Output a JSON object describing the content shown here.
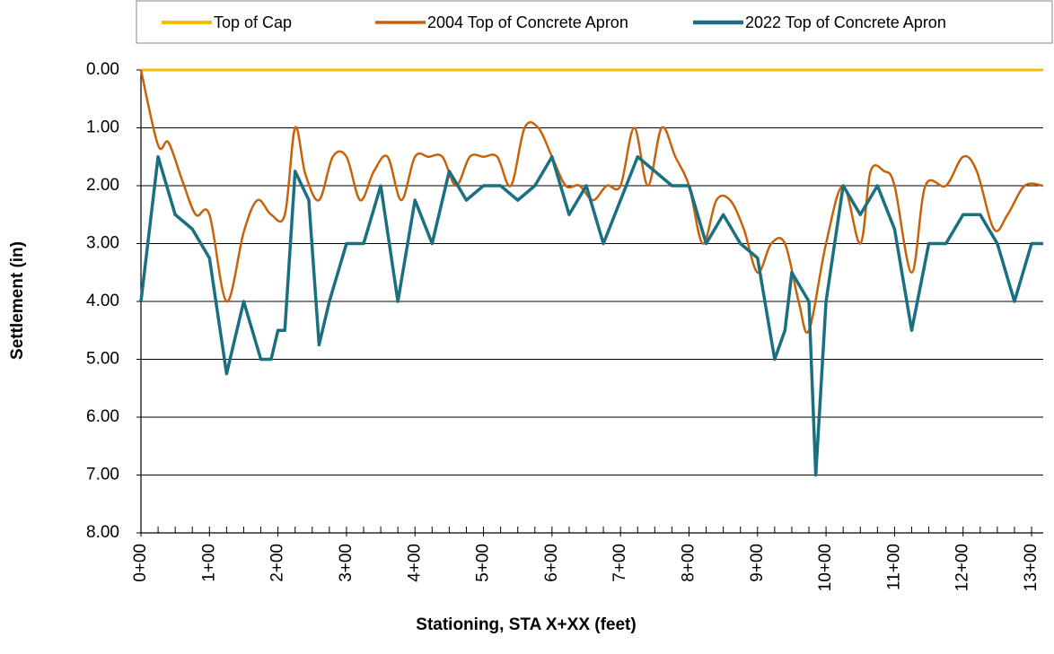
{
  "chart_data": {
    "type": "line",
    "y_label": "Settlement (in)",
    "x_label": "Stationing, STA X+XX (feet)",
    "y_inverted": true,
    "grid": true,
    "legend": "top",
    "xlim": [
      0,
      1317
    ],
    "ylim": [
      0,
      8
    ],
    "yticks": [
      {
        "value": 0,
        "label": "0.00"
      },
      {
        "value": 1,
        "label": "1.00"
      },
      {
        "value": 2,
        "label": "2.00"
      },
      {
        "value": 3,
        "label": "3.00"
      },
      {
        "value": 4,
        "label": "4.00"
      },
      {
        "value": 5,
        "label": "5.00"
      },
      {
        "value": 6,
        "label": "6.00"
      },
      {
        "value": 7,
        "label": "7.00"
      },
      {
        "value": 8,
        "label": "8.00"
      }
    ],
    "xticks": [
      {
        "value": 0,
        "label": "0+00"
      },
      {
        "value": 100,
        "label": "1+00"
      },
      {
        "value": 200,
        "label": "2+00"
      },
      {
        "value": 300,
        "label": "3+00"
      },
      {
        "value": 400,
        "label": "4+00"
      },
      {
        "value": 500,
        "label": "5+00"
      },
      {
        "value": 600,
        "label": "6+00"
      },
      {
        "value": 700,
        "label": "7+00"
      },
      {
        "value": 800,
        "label": "8+00"
      },
      {
        "value": 900,
        "label": "9+00"
      },
      {
        "value": 1000,
        "label": "10+00"
      },
      {
        "value": 1100,
        "label": "11+00"
      },
      {
        "value": 1200,
        "label": "12+00"
      },
      {
        "value": 1300,
        "label": "13+00"
      }
    ],
    "xminorticks": [
      25,
      50,
      75,
      125,
      150,
      175,
      225,
      250,
      275,
      325,
      350,
      375,
      425,
      450,
      475,
      525,
      550,
      575,
      625,
      650,
      675,
      725,
      750,
      775,
      825,
      850,
      875,
      925,
      950,
      975,
      1025,
      1050,
      1075,
      1125,
      1150,
      1175,
      1225,
      1250,
      1275,
      1325
    ],
    "series": [
      {
        "name": "Top of Cap",
        "color": "#f5c000",
        "width": 3,
        "smooth": false,
        "x": [
          0,
          1317
        ],
        "values": [
          0,
          0
        ]
      },
      {
        "name": "2004 Top of Concrete Apron",
        "color": "#c8620a",
        "width": 2.5,
        "smooth": true,
        "x": [
          0,
          25,
          40,
          60,
          80,
          100,
          125,
          150,
          170,
          190,
          210,
          225,
          240,
          260,
          280,
          300,
          320,
          340,
          360,
          380,
          400,
          420,
          440,
          460,
          480,
          500,
          520,
          540,
          560,
          580,
          600,
          620,
          640,
          660,
          680,
          700,
          720,
          740,
          760,
          780,
          800,
          820,
          840,
          860,
          880,
          900,
          920,
          940,
          960,
          975,
          1000,
          1025,
          1050,
          1065,
          1085,
          1100,
          1125,
          1145,
          1175,
          1200,
          1220,
          1245,
          1265,
          1290,
          1317
        ],
        "values": [
          0,
          1.3,
          1.25,
          1.9,
          2.5,
          2.5,
          4.0,
          2.8,
          2.25,
          2.5,
          2.5,
          1.0,
          1.8,
          2.25,
          1.5,
          1.5,
          2.25,
          1.75,
          1.5,
          2.25,
          1.5,
          1.5,
          1.5,
          2.0,
          1.5,
          1.5,
          1.5,
          2.0,
          1.0,
          1.0,
          1.5,
          2.0,
          2.0,
          2.25,
          2.0,
          2.0,
          1.0,
          2.0,
          1.0,
          1.5,
          2.0,
          3.0,
          2.25,
          2.25,
          2.75,
          3.5,
          3.0,
          3.0,
          4.0,
          4.5,
          3.0,
          2.0,
          3.0,
          1.75,
          1.75,
          2.0,
          3.5,
          2.0,
          2.0,
          1.5,
          1.75,
          2.75,
          2.5,
          2.0,
          2.0
        ]
      },
      {
        "name": "2022 Top of Concrete Apron",
        "color": "#1a6f80",
        "width": 3.5,
        "smooth": false,
        "x": [
          0,
          25,
          50,
          75,
          100,
          125,
          150,
          175,
          190,
          200,
          210,
          225,
          245,
          260,
          275,
          300,
          325,
          350,
          375,
          400,
          425,
          450,
          475,
          500,
          525,
          550,
          575,
          600,
          625,
          650,
          675,
          700,
          725,
          750,
          775,
          800,
          825,
          850,
          875,
          900,
          925,
          940,
          950,
          975,
          985,
          1000,
          1025,
          1050,
          1075,
          1100,
          1125,
          1150,
          1175,
          1200,
          1225,
          1250,
          1275,
          1300,
          1317
        ],
        "values": [
          4.0,
          1.5,
          2.5,
          2.75,
          3.25,
          5.25,
          4.0,
          5.0,
          5.0,
          4.5,
          4.5,
          1.75,
          2.25,
          4.75,
          4.0,
          3.0,
          3.0,
          2.0,
          4.0,
          2.25,
          3.0,
          1.75,
          2.25,
          2.0,
          2.0,
          2.25,
          2.0,
          1.5,
          2.5,
          2.0,
          3.0,
          2.25,
          1.5,
          1.75,
          2.0,
          2.0,
          3.0,
          2.5,
          3.0,
          3.25,
          5.0,
          4.5,
          3.5,
          4.0,
          7.0,
          4.0,
          2.0,
          2.5,
          2.0,
          2.75,
          4.5,
          3.0,
          3.0,
          2.5,
          2.5,
          3.0,
          4.0,
          3.0,
          3.0
        ]
      }
    ]
  }
}
